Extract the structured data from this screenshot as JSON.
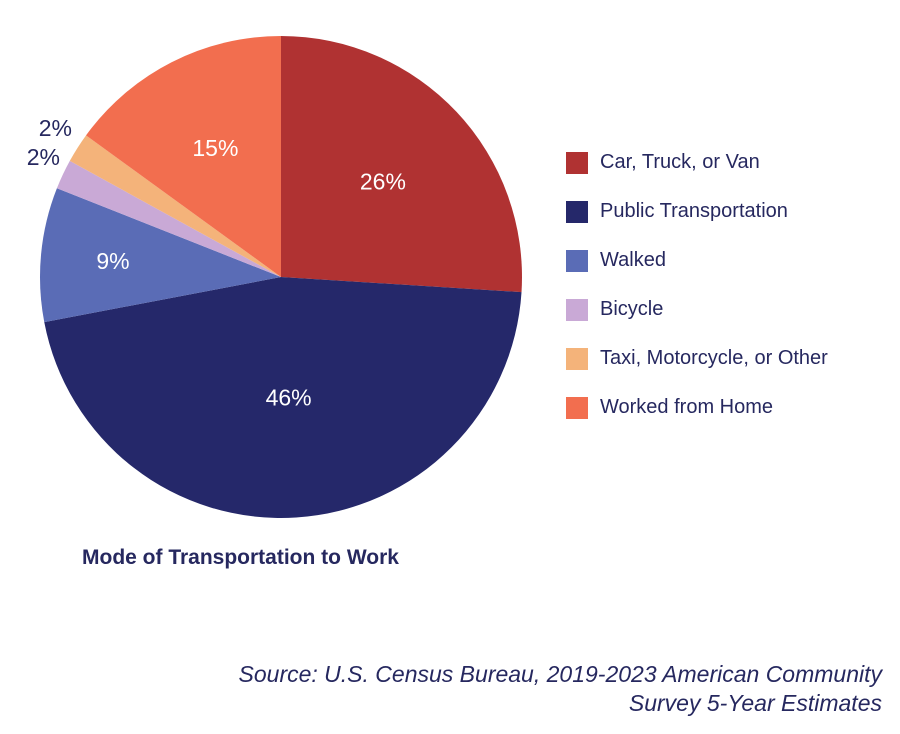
{
  "chart_data": {
    "type": "pie",
    "title": "Mode of Transportation to Work",
    "categories": [
      "Car, Truck, or Van",
      "Public Transportation",
      "Walked",
      "Bicycle",
      "Taxi, Motorcycle, or Other",
      "Worked from Home"
    ],
    "values": [
      26,
      46,
      9,
      2,
      2,
      15
    ],
    "labels": [
      "26%",
      "46%",
      "9%",
      "2%",
      "2%",
      "15%"
    ],
    "colors": [
      "#b03232",
      "#25286a",
      "#5a6cb6",
      "#c9a9d6",
      "#f4b37a",
      "#f26e4f"
    ],
    "legend_position": "right"
  },
  "source": {
    "line1": "Source: U.S. Census Bureau, 2019-2023 American Community",
    "line2": "Survey 5-Year Estimates"
  }
}
